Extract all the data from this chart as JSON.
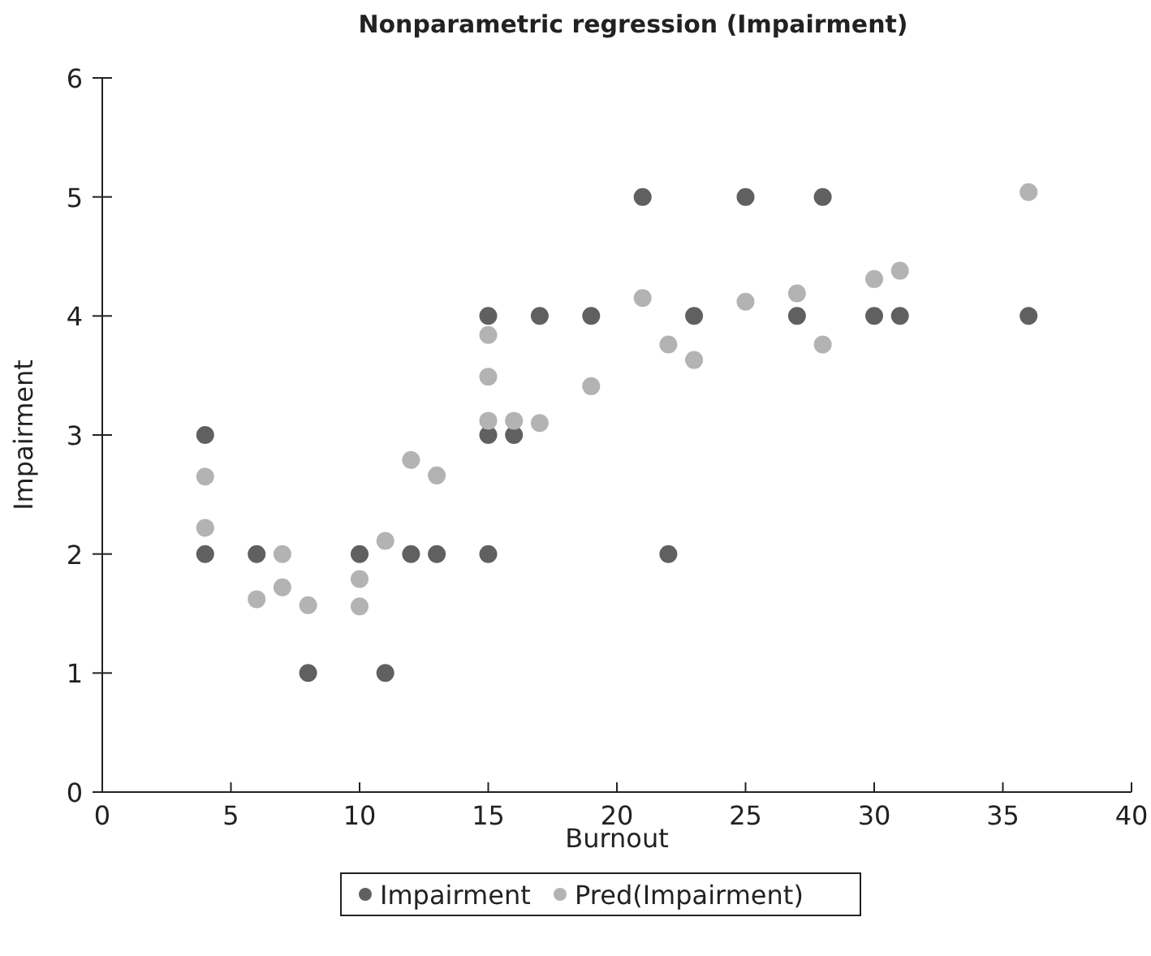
{
  "chart_data": {
    "type": "scatter",
    "title": "Nonparametric regression (Impairment)",
    "xlabel": "Burnout",
    "ylabel": "Impairment",
    "xlim": [
      0,
      40
    ],
    "xticks": [
      0,
      5,
      10,
      15,
      20,
      25,
      30,
      35,
      40
    ],
    "ylim": [
      0,
      6
    ],
    "yticks": [
      0,
      1,
      2,
      3,
      4,
      5,
      6
    ],
    "legend": "bottom",
    "marker": "circle",
    "series": [
      {
        "name": "Impairment",
        "color": "#606060",
        "x": [
          4,
          4,
          6,
          8,
          10,
          11,
          12,
          13,
          15,
          15,
          15,
          16,
          17,
          19,
          21,
          22,
          23,
          25,
          27,
          28,
          30,
          31,
          36
        ],
        "values": [
          3,
          2,
          2,
          1,
          2,
          1,
          2,
          2,
          2,
          3,
          4,
          3,
          4,
          4,
          5,
          2,
          4,
          5,
          4,
          5,
          4,
          4,
          4
        ]
      },
      {
        "name": "Pred(Impairment)",
        "color": "#b3b3b3",
        "x": [
          4,
          4,
          6,
          7,
          7,
          8,
          10,
          10,
          11,
          12,
          13,
          15,
          15,
          15,
          16,
          17,
          19,
          21,
          22,
          23,
          25,
          27,
          28,
          30,
          31,
          36
        ],
        "values": [
          2.65,
          2.22,
          1.62,
          2.0,
          1.72,
          1.57,
          1.79,
          1.56,
          2.11,
          2.79,
          2.66,
          3.84,
          3.49,
          3.12,
          3.12,
          3.1,
          3.41,
          4.15,
          3.76,
          3.63,
          4.12,
          4.19,
          3.76,
          4.31,
          4.38,
          5.04
        ]
      }
    ]
  }
}
